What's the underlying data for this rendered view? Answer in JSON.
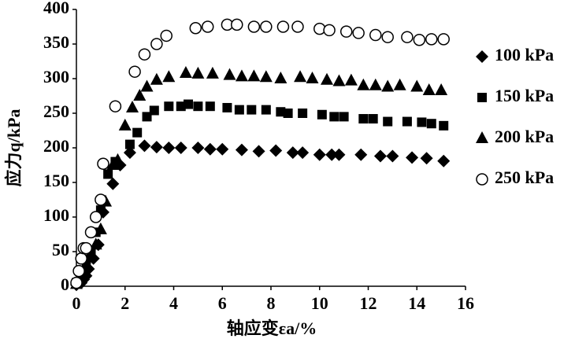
{
  "chart_data": {
    "type": "scatter",
    "xlabel": "轴应变εa/%",
    "ylabel": "应力q/kPa",
    "xlim": [
      0,
      16
    ],
    "xticks": [
      0,
      2,
      4,
      6,
      8,
      10,
      12,
      14,
      16
    ],
    "ylim": [
      0,
      400
    ],
    "yticks": [
      0,
      50,
      100,
      150,
      200,
      250,
      300,
      350,
      400
    ],
    "grid": false,
    "legend": "right",
    "series": [
      {
        "name": "100 kPa",
        "color": "#000000",
        "marker": "diamond",
        "x": [
          0,
          0.2,
          0.3,
          0.4,
          0.5,
          0.7,
          0.9,
          1.1,
          1.5,
          1.8,
          2.2,
          2.8,
          3.3,
          3.8,
          4.3,
          5.0,
          5.5,
          6.0,
          6.8,
          7.5,
          8.2,
          8.9,
          9.3,
          10.0,
          10.5,
          10.8,
          11.7,
          12.5,
          13.0,
          13.8,
          14.4,
          15.1
        ],
        "values": [
          2,
          5,
          10,
          15,
          25,
          40,
          60,
          107,
          148,
          175,
          193,
          203,
          201,
          200,
          200,
          200,
          198,
          198,
          197,
          195,
          196,
          193,
          193,
          190,
          190,
          190,
          190,
          188,
          188,
          186,
          185,
          181
        ]
      },
      {
        "name": "150 kPa",
        "color": "#000000",
        "marker": "square",
        "x": [
          0,
          0.2,
          0.4,
          0.6,
          0.8,
          1.0,
          1.3,
          1.6,
          2.2,
          2.5,
          2.9,
          3.2,
          3.8,
          4.3,
          4.6,
          5.0,
          5.5,
          6.2,
          6.7,
          7.2,
          7.8,
          8.4,
          8.7,
          9.3,
          10.1,
          10.6,
          11.0,
          11.8,
          12.2,
          12.8,
          13.6,
          14.2,
          14.6,
          15.1
        ],
        "values": [
          5,
          20,
          38,
          50,
          78,
          110,
          162,
          180,
          205,
          222,
          245,
          254,
          260,
          260,
          263,
          260,
          260,
          258,
          255,
          255,
          255,
          252,
          250,
          250,
          248,
          245,
          245,
          242,
          242,
          238,
          238,
          237,
          235,
          232
        ]
      },
      {
        "name": "200 kPa",
        "color": "#000000",
        "marker": "triangle",
        "x": [
          0,
          0.2,
          0.4,
          0.6,
          0.8,
          1.0,
          1.2,
          1.5,
          1.7,
          2.0,
          2.3,
          2.6,
          2.9,
          3.3,
          3.8,
          4.5,
          5.0,
          5.6,
          6.3,
          6.8,
          7.3,
          7.8,
          8.4,
          9.2,
          9.7,
          10.3,
          10.8,
          11.3,
          11.8,
          12.3,
          12.8,
          13.3,
          14.0,
          14.5,
          15.0
        ],
        "values": [
          3,
          18,
          32,
          48,
          60,
          82,
          122,
          175,
          182,
          232,
          258,
          275,
          288,
          298,
          302,
          308,
          307,
          307,
          305,
          303,
          303,
          302,
          300,
          302,
          300,
          298,
          296,
          297,
          290,
          290,
          288,
          290,
          288,
          283,
          283
        ]
      },
      {
        "name": "250 kPa",
        "color": "#000000",
        "marker": "circle-open",
        "x": [
          0,
          0.1,
          0.2,
          0.3,
          0.4,
          0.6,
          0.8,
          1.0,
          1.1,
          1.6,
          2.4,
          2.8,
          3.3,
          3.7,
          4.9,
          5.4,
          6.2,
          6.6,
          7.3,
          7.8,
          8.5,
          9.1,
          10.0,
          10.4,
          11.1,
          11.6,
          12.3,
          12.8,
          13.6,
          14.1,
          14.6,
          15.1
        ],
        "values": [
          5,
          22,
          40,
          55,
          55,
          78,
          100,
          125,
          177,
          260,
          310,
          335,
          350,
          362,
          373,
          375,
          378,
          378,
          375,
          375,
          375,
          375,
          372,
          370,
          368,
          366,
          363,
          360,
          360,
          356,
          357,
          357
        ]
      }
    ]
  }
}
